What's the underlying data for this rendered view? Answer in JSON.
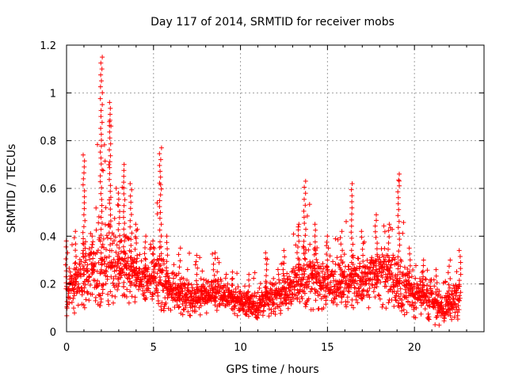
{
  "chart_data": {
    "type": "scatter",
    "title": "Day 117 of 2014, SRMTID for receiver mobs",
    "xlabel": "GPS time / hours",
    "ylabel": "SRMTID / TECUs",
    "xlim": [
      0,
      24
    ],
    "ylim": [
      0,
      1.2
    ],
    "x_ticks": [
      "0",
      "5",
      "10",
      "15",
      "20"
    ],
    "y_ticks": [
      "0",
      "0.2",
      "0.4",
      "0.6",
      "0.8",
      "1",
      "1.2"
    ],
    "grid": true,
    "marker": "plus",
    "color": "#ff0000",
    "envelope": [
      {
        "x": 0.0,
        "y": 0.38
      },
      {
        "x": 0.5,
        "y": 0.42
      },
      {
        "x": 1.0,
        "y": 0.74
      },
      {
        "x": 1.5,
        "y": 0.4
      },
      {
        "x": 2.0,
        "y": 1.15
      },
      {
        "x": 2.5,
        "y": 0.96
      },
      {
        "x": 3.0,
        "y": 0.58
      },
      {
        "x": 3.3,
        "y": 0.7
      },
      {
        "x": 3.7,
        "y": 0.62
      },
      {
        "x": 4.0,
        "y": 0.45
      },
      {
        "x": 4.5,
        "y": 0.4
      },
      {
        "x": 5.0,
        "y": 0.38
      },
      {
        "x": 5.4,
        "y": 0.77
      },
      {
        "x": 5.8,
        "y": 0.4
      },
      {
        "x": 6.5,
        "y": 0.35
      },
      {
        "x": 7.5,
        "y": 0.32
      },
      {
        "x": 8.5,
        "y": 0.33
      },
      {
        "x": 9.5,
        "y": 0.25
      },
      {
        "x": 10.5,
        "y": 0.24
      },
      {
        "x": 11.5,
        "y": 0.33
      },
      {
        "x": 12.5,
        "y": 0.34
      },
      {
        "x": 13.3,
        "y": 0.45
      },
      {
        "x": 13.7,
        "y": 0.63
      },
      {
        "x": 14.3,
        "y": 0.45
      },
      {
        "x": 15.0,
        "y": 0.4
      },
      {
        "x": 15.8,
        "y": 0.42
      },
      {
        "x": 16.4,
        "y": 0.62
      },
      {
        "x": 17.0,
        "y": 0.42
      },
      {
        "x": 17.8,
        "y": 0.49
      },
      {
        "x": 18.5,
        "y": 0.45
      },
      {
        "x": 19.1,
        "y": 0.66
      },
      {
        "x": 19.7,
        "y": 0.35
      },
      {
        "x": 20.5,
        "y": 0.3
      },
      {
        "x": 21.3,
        "y": 0.26
      },
      {
        "x": 22.0,
        "y": 0.3
      },
      {
        "x": 22.6,
        "y": 0.34
      }
    ],
    "baseline": [
      {
        "x": 0.0,
        "y": 0.06
      },
      {
        "x": 1.0,
        "y": 0.1
      },
      {
        "x": 3.0,
        "y": 0.12
      },
      {
        "x": 5.0,
        "y": 0.1
      },
      {
        "x": 7.0,
        "y": 0.06
      },
      {
        "x": 9.0,
        "y": 0.07
      },
      {
        "x": 10.5,
        "y": 0.05
      },
      {
        "x": 12.0,
        "y": 0.07
      },
      {
        "x": 14.0,
        "y": 0.09
      },
      {
        "x": 16.0,
        "y": 0.1
      },
      {
        "x": 18.0,
        "y": 0.1
      },
      {
        "x": 20.0,
        "y": 0.06
      },
      {
        "x": 21.5,
        "y": 0.02
      },
      {
        "x": 22.6,
        "y": 0.05
      }
    ],
    "median": [
      {
        "x": 0.0,
        "y": 0.18
      },
      {
        "x": 1.0,
        "y": 0.24
      },
      {
        "x": 2.0,
        "y": 0.28
      },
      {
        "x": 3.0,
        "y": 0.3
      },
      {
        "x": 4.0,
        "y": 0.24
      },
      {
        "x": 5.0,
        "y": 0.22
      },
      {
        "x": 6.0,
        "y": 0.18
      },
      {
        "x": 7.0,
        "y": 0.15
      },
      {
        "x": 8.0,
        "y": 0.17
      },
      {
        "x": 9.0,
        "y": 0.16
      },
      {
        "x": 10.0,
        "y": 0.12
      },
      {
        "x": 11.0,
        "y": 0.12
      },
      {
        "x": 12.0,
        "y": 0.16
      },
      {
        "x": 13.0,
        "y": 0.2
      },
      {
        "x": 14.0,
        "y": 0.24
      },
      {
        "x": 15.0,
        "y": 0.2
      },
      {
        "x": 16.0,
        "y": 0.21
      },
      {
        "x": 17.0,
        "y": 0.22
      },
      {
        "x": 18.0,
        "y": 0.26
      },
      {
        "x": 19.0,
        "y": 0.22
      },
      {
        "x": 20.0,
        "y": 0.16
      },
      {
        "x": 21.0,
        "y": 0.16
      },
      {
        "x": 21.5,
        "y": 0.1
      },
      {
        "x": 22.6,
        "y": 0.14
      }
    ]
  }
}
